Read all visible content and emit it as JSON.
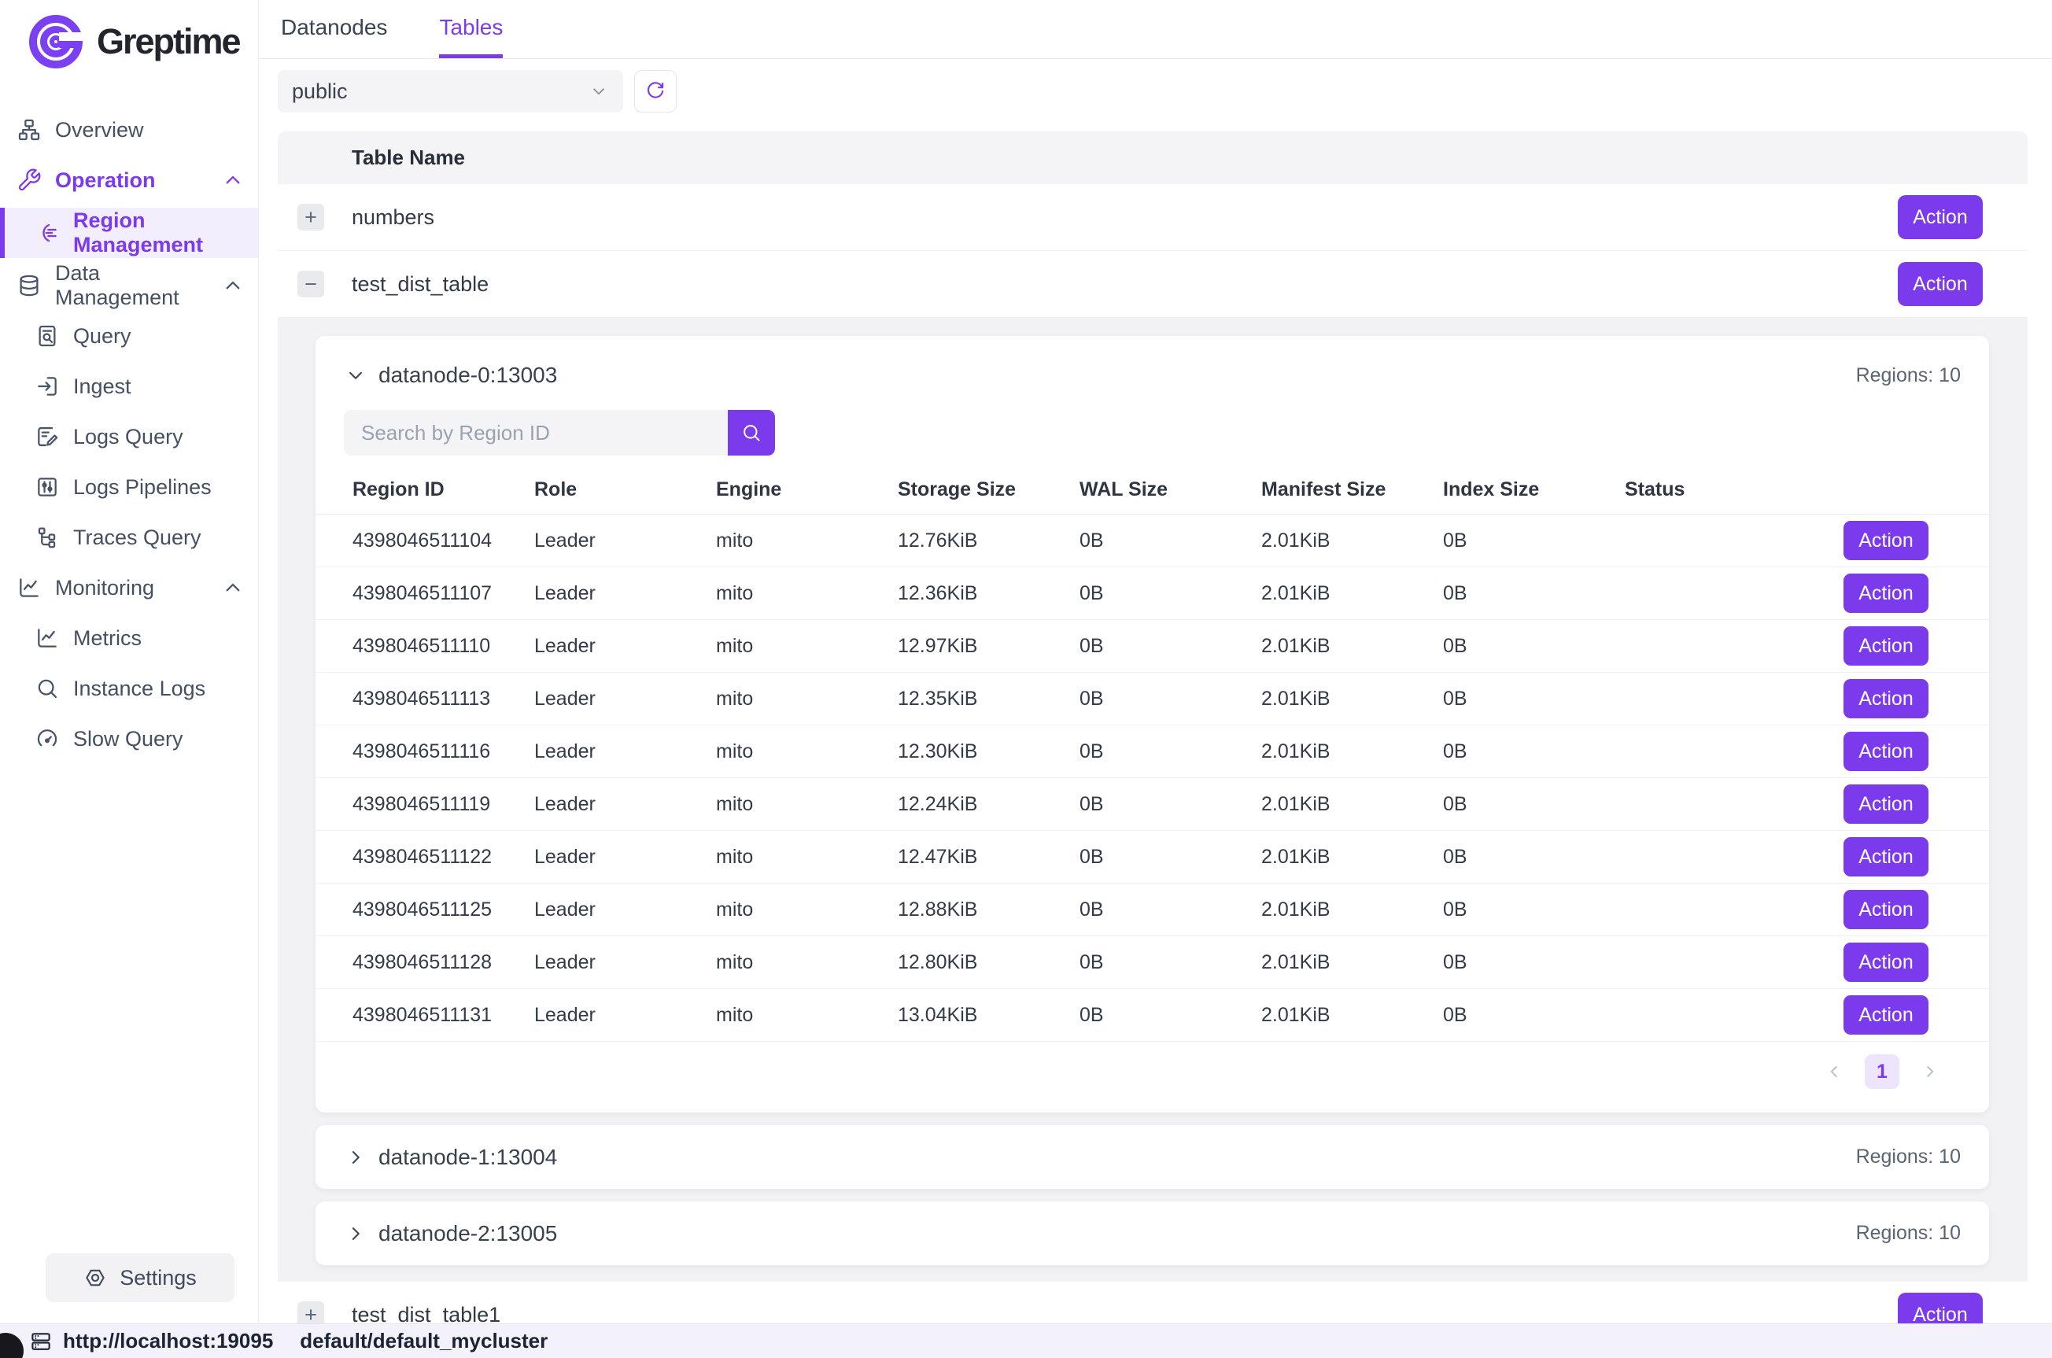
{
  "app": {
    "brand": "Greptime"
  },
  "colors": {
    "accent": "#7c3aed",
    "sidebar_active_bg": "#f3eefe",
    "section_bg": "#f2f2f4",
    "statusbar_bg": "#f3f2fa"
  },
  "sidebar": {
    "items": [
      {
        "label": "Overview",
        "icon": "sitemap"
      },
      {
        "label": "Operation",
        "icon": "wrench",
        "accent": true,
        "chevron": true,
        "chevron_accent": true
      },
      {
        "label": "Region Management",
        "icon": "region",
        "indent": true,
        "active": true
      },
      {
        "label": "Data Management",
        "icon": "database",
        "group": true,
        "chevron": true
      },
      {
        "label": "Query",
        "icon": "doc-search",
        "indent": true
      },
      {
        "label": "Ingest",
        "icon": "ingest",
        "indent": true
      },
      {
        "label": "Logs Query",
        "icon": "doc-edit",
        "indent": true
      },
      {
        "label": "Logs Pipelines",
        "icon": "sliders",
        "indent": true
      },
      {
        "label": "Traces Query",
        "icon": "tree",
        "indent": true
      },
      {
        "label": "Monitoring",
        "icon": "chart",
        "group": true,
        "chevron": true
      },
      {
        "label": "Metrics",
        "icon": "chart",
        "indent": true
      },
      {
        "label": "Instance Logs",
        "icon": "search",
        "indent": true
      },
      {
        "label": "Slow Query",
        "icon": "gauge",
        "indent": true
      }
    ],
    "settings_label": "Settings"
  },
  "tabs": [
    {
      "label": "Datanodes",
      "active": false
    },
    {
      "label": "Tables",
      "active": true
    }
  ],
  "toolbar": {
    "schema_select_value": "public"
  },
  "tables_list": {
    "header": "Table Name",
    "action_label": "Action",
    "rows": [
      {
        "name": "numbers",
        "expander": "+",
        "expanded": false
      },
      {
        "name": "test_dist_table",
        "expander": "−",
        "expanded": true
      },
      {
        "name": "test_dist_table1",
        "expander": "+",
        "expanded": false
      }
    ]
  },
  "datanodes": [
    {
      "name": "datanode-0:13003",
      "regions_label": "Regions: 10",
      "expanded": true
    },
    {
      "name": "datanode-1:13004",
      "regions_label": "Regions: 10",
      "expanded": false
    },
    {
      "name": "datanode-2:13005",
      "regions_label": "Regions: 10",
      "expanded": false
    }
  ],
  "region_table": {
    "search_placeholder": "Search by Region ID",
    "columns": [
      "Region ID",
      "Role",
      "Engine",
      "Storage Size",
      "WAL Size",
      "Manifest Size",
      "Index Size",
      "Status"
    ],
    "action_label": "Action",
    "rows": [
      [
        "4398046511104",
        "Leader",
        "mito",
        "12.76KiB",
        "0B",
        "2.01KiB",
        "0B",
        ""
      ],
      [
        "4398046511107",
        "Leader",
        "mito",
        "12.36KiB",
        "0B",
        "2.01KiB",
        "0B",
        ""
      ],
      [
        "4398046511110",
        "Leader",
        "mito",
        "12.97KiB",
        "0B",
        "2.01KiB",
        "0B",
        ""
      ],
      [
        "4398046511113",
        "Leader",
        "mito",
        "12.35KiB",
        "0B",
        "2.01KiB",
        "0B",
        ""
      ],
      [
        "4398046511116",
        "Leader",
        "mito",
        "12.30KiB",
        "0B",
        "2.01KiB",
        "0B",
        ""
      ],
      [
        "4398046511119",
        "Leader",
        "mito",
        "12.24KiB",
        "0B",
        "2.01KiB",
        "0B",
        ""
      ],
      [
        "4398046511122",
        "Leader",
        "mito",
        "12.47KiB",
        "0B",
        "2.01KiB",
        "0B",
        ""
      ],
      [
        "4398046511125",
        "Leader",
        "mito",
        "12.88KiB",
        "0B",
        "2.01KiB",
        "0B",
        ""
      ],
      [
        "4398046511128",
        "Leader",
        "mito",
        "12.80KiB",
        "0B",
        "2.01KiB",
        "0B",
        ""
      ],
      [
        "4398046511131",
        "Leader",
        "mito",
        "13.04KiB",
        "0B",
        "2.01KiB",
        "0B",
        ""
      ]
    ],
    "pagination": {
      "current_page": "1"
    }
  },
  "status_bar": {
    "url": "http://localhost:19095",
    "cluster": "default/default_mycluster"
  }
}
